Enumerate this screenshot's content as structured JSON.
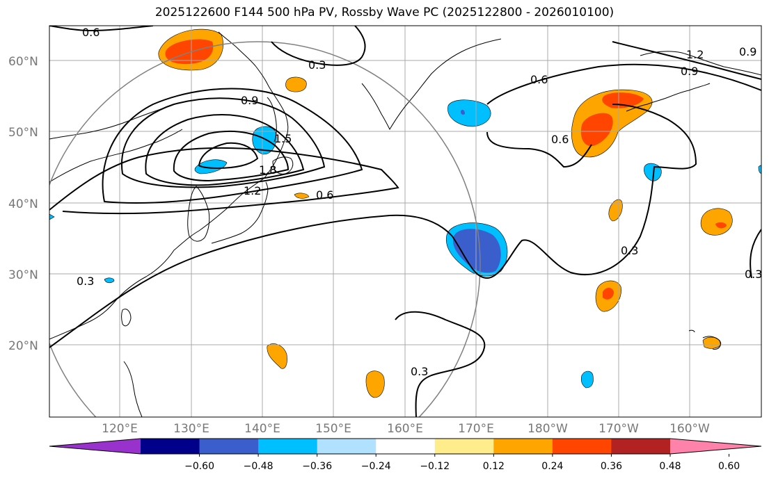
{
  "title": "2025122600 F144 500 hPa PV, Rossby Wave PC (2025122800 - 2026010100)",
  "axes": {
    "lat_labels": [
      "60°N",
      "50°N",
      "40°N",
      "30°N",
      "20°N"
    ],
    "lon_labels": [
      "120°E",
      "130°E",
      "140°E",
      "150°E",
      "160°E",
      "170°E",
      "180°W",
      "170°W",
      "160°W"
    ]
  },
  "colorbar": {
    "ticks": [
      "−0.60",
      "−0.48",
      "−0.36",
      "−0.24",
      "−0.12",
      "0.12",
      "0.24",
      "0.36",
      "0.48",
      "0.60"
    ],
    "colors": [
      "#9932cc",
      "#00008b",
      "#3a5fcd",
      "#00bfff",
      "#b0e2ff",
      "#ffffff",
      "#ffec8b",
      "#ffa500",
      "#ff4500",
      "#b22222",
      "#ff82ab"
    ]
  },
  "contour_labels": [
    "0.6",
    "0.3",
    "0.9",
    "1.5",
    "1.8",
    "1.2",
    "0.6",
    "0.6",
    "0.6",
    "1.2",
    "0.9",
    "0.9",
    "0.3",
    "0.3",
    "0.3",
    "0.3"
  ]
}
